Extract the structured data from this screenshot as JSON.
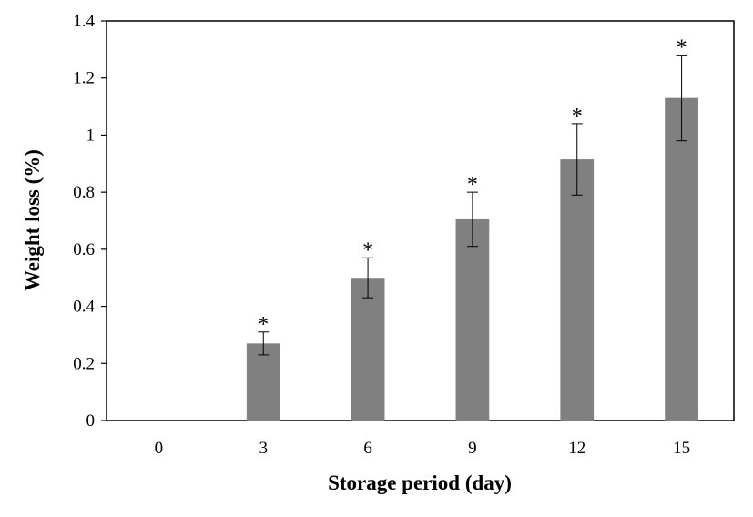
{
  "chart_data": {
    "type": "bar",
    "title": "",
    "xlabel": "Storage period  (day)",
    "ylabel": "Weight  loss (%)",
    "categories": [
      "0",
      "3",
      "6",
      "9",
      "12",
      "15"
    ],
    "values": [
      0,
      0.27,
      0.5,
      0.705,
      0.915,
      1.13
    ],
    "error": [
      0,
      0.04,
      0.07,
      0.095,
      0.125,
      0.15
    ],
    "annotations": [
      "",
      "*",
      "*",
      "*",
      "*",
      "*"
    ],
    "ylim": [
      0,
      1.4
    ],
    "yticks": [
      "0",
      "0.2",
      "0.4",
      "0.6",
      "0.8",
      "1",
      "1.2",
      "1.4"
    ],
    "grid": false,
    "bar_color": "#808080",
    "legend": "none"
  }
}
